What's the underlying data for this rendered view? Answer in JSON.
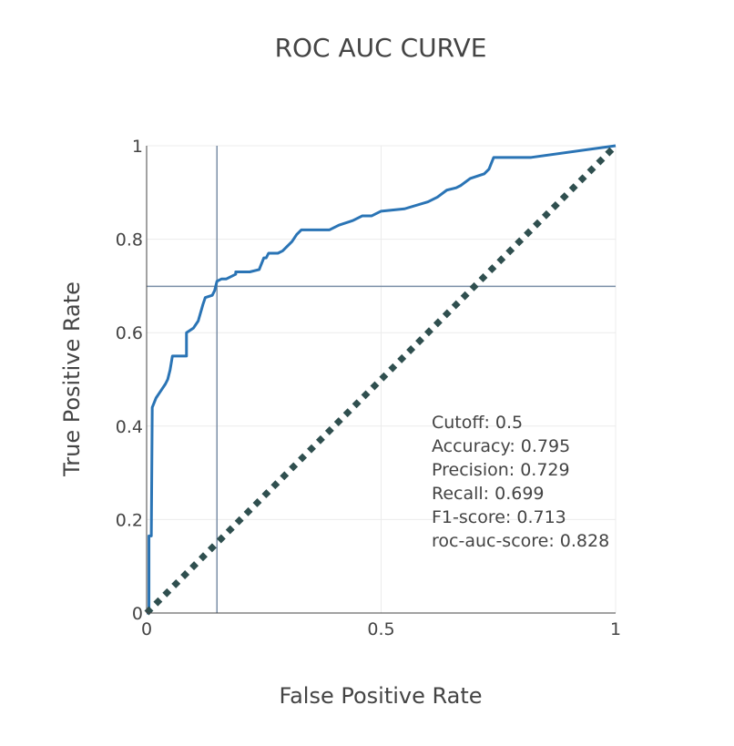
{
  "chart_data": {
    "type": "line",
    "title": "ROC AUC CURVE",
    "xlabel": "False Positive Rate",
    "ylabel": "True Positive Rate",
    "xlim": [
      0,
      1
    ],
    "ylim": [
      0,
      1
    ],
    "x_ticks": [
      {
        "value": 0,
        "label": "0"
      },
      {
        "value": 0.5,
        "label": "0.5"
      },
      {
        "value": 1,
        "label": "1"
      }
    ],
    "y_ticks": [
      {
        "value": 0,
        "label": "0"
      },
      {
        "value": 0.2,
        "label": "0.2"
      },
      {
        "value": 0.4,
        "label": "0.4"
      },
      {
        "value": 0.6,
        "label": "0.6"
      },
      {
        "value": 0.8,
        "label": "0.8"
      },
      {
        "value": 1,
        "label": "1"
      }
    ],
    "grid": true,
    "series": [
      {
        "color": "#2a74b5",
        "x": [
          0,
          0.005,
          0.005,
          0.01,
          0.012,
          0.02,
          0.03,
          0.04,
          0.045,
          0.05,
          0.055,
          0.085,
          0.085,
          0.1,
          0.11,
          0.12,
          0.125,
          0.14,
          0.145,
          0.15,
          0.16,
          0.17,
          0.19,
          0.19,
          0.22,
          0.24,
          0.25,
          0.255,
          0.26,
          0.28,
          0.29,
          0.3,
          0.31,
          0.32,
          0.33,
          0.34,
          0.39,
          0.41,
          0.44,
          0.46,
          0.48,
          0.5,
          0.55,
          0.6,
          0.62,
          0.64,
          0.66,
          0.67,
          0.69,
          0.72,
          0.73,
          0.74,
          0.82,
          1.0
        ],
        "y": [
          0,
          0,
          0.165,
          0.165,
          0.44,
          0.46,
          0.475,
          0.49,
          0.5,
          0.52,
          0.55,
          0.55,
          0.6,
          0.61,
          0.625,
          0.66,
          0.675,
          0.68,
          0.69,
          0.71,
          0.715,
          0.715,
          0.725,
          0.73,
          0.73,
          0.735,
          0.76,
          0.76,
          0.77,
          0.77,
          0.775,
          0.785,
          0.795,
          0.81,
          0.82,
          0.82,
          0.82,
          0.83,
          0.84,
          0.85,
          0.85,
          0.86,
          0.865,
          0.88,
          0.89,
          0.905,
          0.91,
          0.915,
          0.93,
          0.94,
          0.95,
          0.975,
          0.975,
          1.0
        ]
      },
      {
        "color": "#2f4f4f",
        "style": "dotted",
        "x": [
          0,
          1
        ],
        "y": [
          0,
          1
        ]
      }
    ],
    "reference_lines": {
      "vertical_x": 0.15,
      "horizontal_y": 0.699,
      "color": "#7a8ea6"
    },
    "annotation": [
      "Cutoff: 0.5",
      "Accuracy: 0.795",
      "Precision: 0.729",
      "Recall: 0.699",
      "F1-score: 0.713",
      "roc-auc-score: 0.828"
    ]
  }
}
